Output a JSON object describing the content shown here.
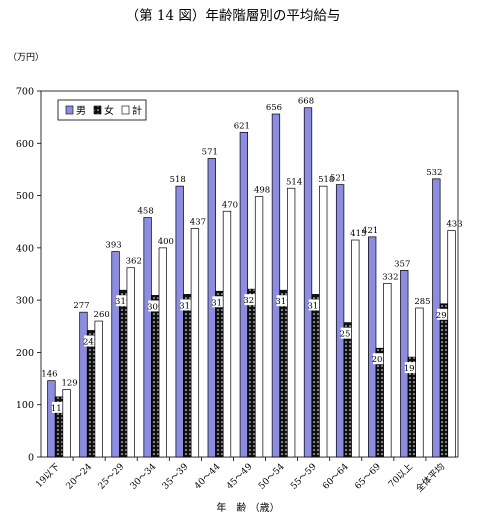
{
  "chart_data": {
    "type": "bar",
    "title": "（第 14 図）年齢階層別の平均給与",
    "unit_label": "（万円）",
    "xlabel": "年　齢 （歳）",
    "ylabel": "",
    "ylim": [
      0,
      700
    ],
    "yticks": [
      0,
      100,
      200,
      300,
      400,
      500,
      600,
      700
    ],
    "grid": false,
    "legend_position": "top-left",
    "categories": [
      "19以下",
      "20～24",
      "25～29",
      "30～34",
      "35～39",
      "40～44",
      "45～49",
      "50～54",
      "55～59",
      "60～64",
      "65～69",
      "70以上",
      "全体平均"
    ],
    "series": [
      {
        "name": "男",
        "values": [
          146,
          277,
          393,
          458,
          518,
          571,
          621,
          656,
          668,
          521,
          421,
          357,
          532
        ],
        "color": "#8c8ce0",
        "pattern": "solid"
      },
      {
        "name": "女",
        "values": [
          115,
          242,
          319,
          309,
          311,
          317,
          321,
          319,
          311,
          257,
          208,
          191,
          293
        ],
        "color": "#111111",
        "pattern": "dots"
      },
      {
        "name": "計",
        "values": [
          129,
          260,
          362,
          400,
          437,
          470,
          498,
          514,
          518,
          415,
          332,
          285,
          433
        ],
        "color": "#ffffff",
        "pattern": "outline"
      }
    ]
  }
}
